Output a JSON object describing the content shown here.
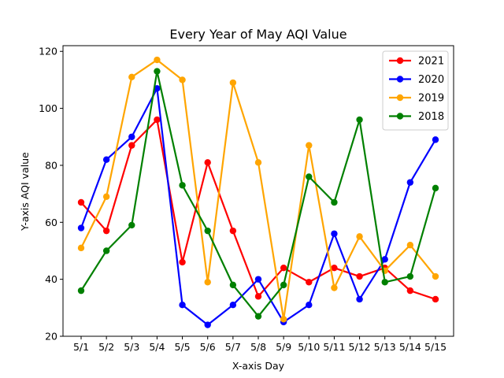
{
  "chart_data": {
    "type": "line",
    "title": "Every Year of May AQI Value",
    "xlabel": "X-axis Day",
    "ylabel": "Y-axis AQI value",
    "categories": [
      "5/1",
      "5/2",
      "5/3",
      "5/4",
      "5/5",
      "5/6",
      "5/7",
      "5/8",
      "5/9",
      "5/10",
      "5/11",
      "5/12",
      "5/13",
      "5/14",
      "5/15"
    ],
    "ylim": [
      20,
      122
    ],
    "yticks": [
      20,
      40,
      60,
      80,
      100,
      120
    ],
    "grid": false,
    "legend_position": "top-right",
    "series": [
      {
        "name": "2021",
        "color": "#ff0000",
        "values": [
          67,
          57,
          87,
          96,
          46,
          81,
          57,
          34,
          44,
          39,
          44,
          41,
          44,
          36,
          33
        ]
      },
      {
        "name": "2020",
        "color": "#0000ff",
        "values": [
          58,
          82,
          90,
          107,
          31,
          24,
          31,
          40,
          25,
          31,
          56,
          33,
          47,
          74,
          89
        ]
      },
      {
        "name": "2019",
        "color": "#ffa500",
        "values": [
          51,
          69,
          111,
          117,
          110,
          39,
          109,
          81,
          26,
          87,
          37,
          55,
          43,
          52,
          41
        ]
      },
      {
        "name": "2018",
        "color": "#008000",
        "values": [
          36,
          50,
          59,
          113,
          73,
          57,
          38,
          27,
          38,
          76,
          67,
          96,
          39,
          41,
          72
        ]
      }
    ]
  }
}
